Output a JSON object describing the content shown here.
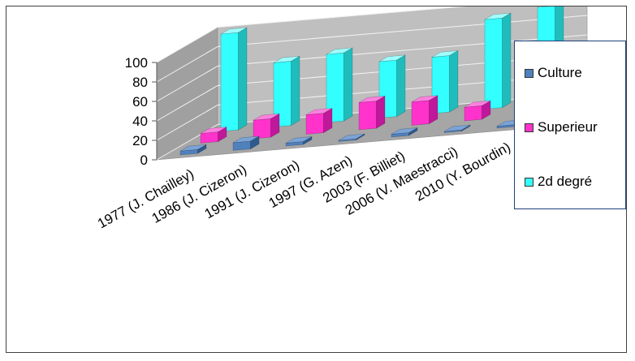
{
  "chart_data": {
    "type": "bar",
    "categories": [
      "1977 (J. Chailley)",
      "1986 (J. Cizeron)",
      "1991 (J. Cizeron)",
      "1997 (G. Azen)",
      "2003 (F. Billiet)",
      "2006 (V. Maestracci)",
      "2010 (Y. Bourdin)"
    ],
    "series": [
      {
        "name": "Culture",
        "values": [
          4,
          8,
          3,
          1,
          3,
          1,
          2
        ]
      },
      {
        "name": "Superieur",
        "values": [
          10,
          19,
          20,
          28,
          24,
          14,
          4
        ]
      },
      {
        "name": "2d degré",
        "values": [
          100,
          66,
          70,
          58,
          58,
          92,
          100
        ]
      }
    ],
    "yticks": [
      "0",
      "20",
      "40",
      "60",
      "80",
      "100"
    ],
    "ylim": [
      0,
      100
    ],
    "grid": true,
    "legend_position": "right",
    "view": "3d-column",
    "colors": {
      "Culture": {
        "front": "#4f81bd",
        "top": "#7ba3d6",
        "side": "#2f5a8f"
      },
      "Superieur": {
        "front": "#ff33cc",
        "top": "#ff80e0",
        "side": "#c0189a"
      },
      "2d degré": {
        "front": "#33ffff",
        "top": "#9fffff",
        "side": "#20bcbc"
      }
    },
    "wall_color": "#bfbfbf",
    "floor_color": "#a6a6a6"
  }
}
